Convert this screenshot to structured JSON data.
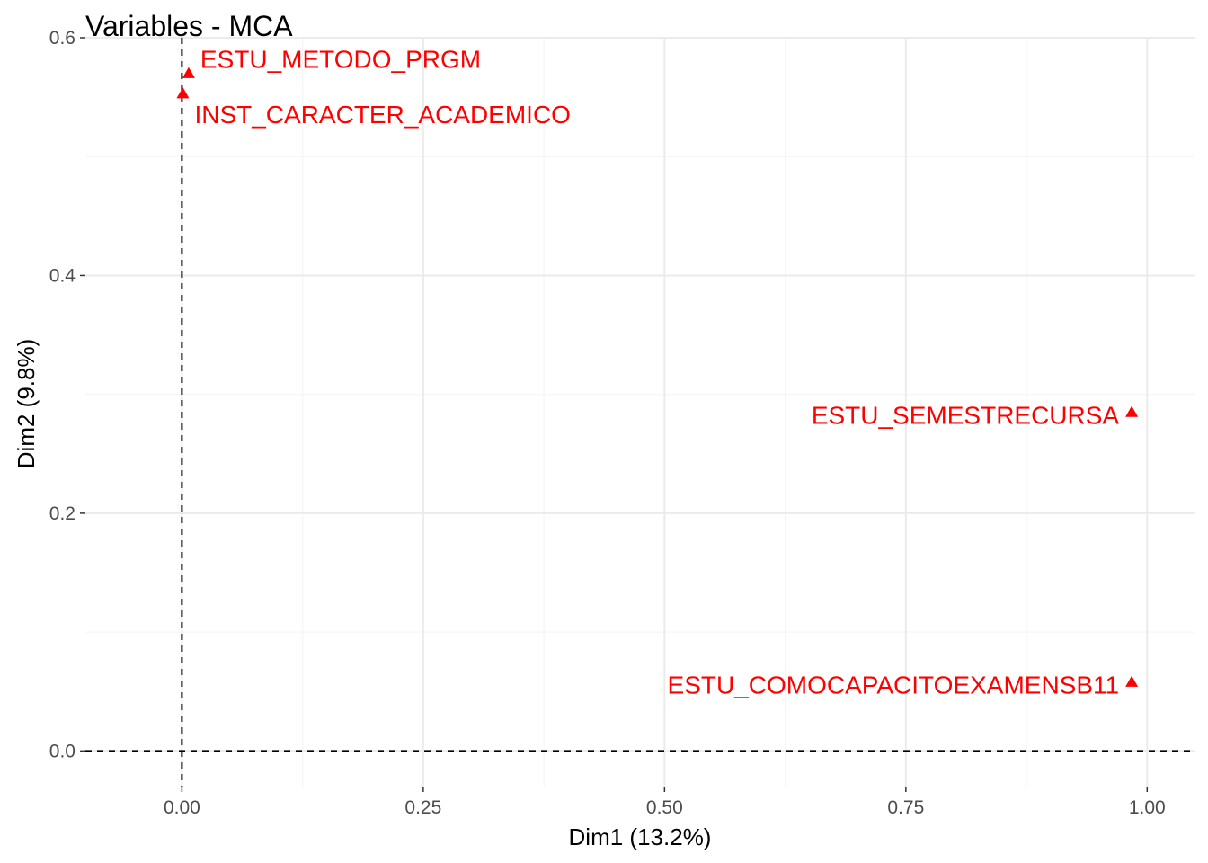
{
  "chart_data": {
    "type": "scatter",
    "title": "Variables - MCA",
    "xlabel": "Dim1 (13.2%)",
    "ylabel": "Dim2 (9.8%)",
    "xlim": [
      -0.1,
      1.05
    ],
    "ylim": [
      -0.03,
      0.6
    ],
    "x_ticks": [
      0.0,
      0.25,
      0.5,
      0.75,
      1.0
    ],
    "x_tick_labels": [
      "0.00",
      "0.25",
      "0.50",
      "0.75",
      "1.00"
    ],
    "y_ticks": [
      0.0,
      0.2,
      0.4,
      0.6
    ],
    "y_tick_labels": [
      "0.0",
      "0.2",
      "0.4",
      "0.6"
    ],
    "grid": true,
    "reference_lines": {
      "x": 0,
      "y": 0,
      "style": "dashed"
    },
    "marker": "triangle",
    "point_color": "#ff0000",
    "points": [
      {
        "label": "ESTU_METODO_PRGM",
        "x": 0.007,
        "y": 0.57,
        "label_side": "right-above"
      },
      {
        "label": "INST_CARACTER_ACADEMICO",
        "x": 0.001,
        "y": 0.553,
        "label_side": "right-below"
      },
      {
        "label": "ESTU_SEMESTRECURSA",
        "x": 0.984,
        "y": 0.285,
        "label_side": "left"
      },
      {
        "label": "ESTU_COMOCAPACITOEXAMENSB11",
        "x": 0.984,
        "y": 0.058,
        "label_side": "left"
      }
    ]
  }
}
